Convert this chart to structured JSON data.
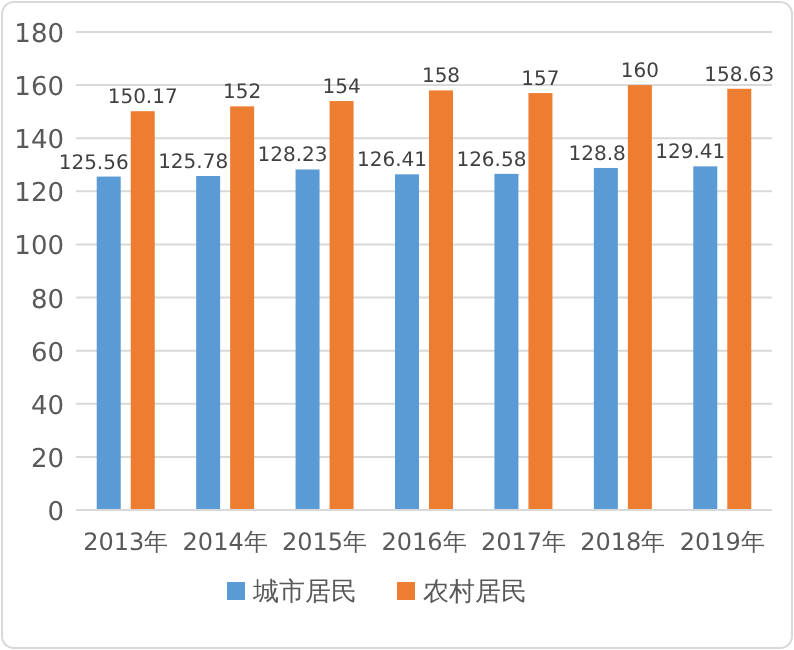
{
  "chart_data": {
    "type": "bar",
    "categories": [
      "2013年",
      "2014年",
      "2015年",
      "2016年",
      "2017年",
      "2018年",
      "2019年"
    ],
    "series": [
      {
        "name": "城市居民",
        "color": "#5b9bd5",
        "values": [
          125.56,
          125.78,
          128.23,
          126.41,
          126.58,
          128.8,
          129.41
        ]
      },
      {
        "name": "农村居民",
        "color": "#ed7d31",
        "values": [
          150.17,
          152,
          154,
          158,
          157,
          160,
          158.63
        ]
      }
    ],
    "ylim": [
      0,
      180
    ],
    "yticks": [
      0,
      20,
      40,
      60,
      80,
      100,
      120,
      140,
      160,
      180
    ],
    "grid": "y",
    "legend": "bottom",
    "data_labels": true
  }
}
